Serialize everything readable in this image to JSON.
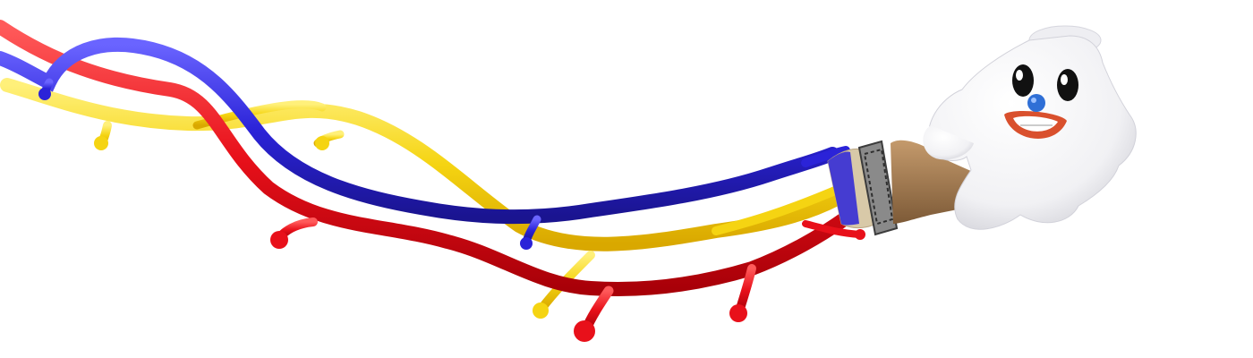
{
  "scene": {
    "background": "#ffffff",
    "colors": {
      "red": "#e8101a",
      "blue": "#2b23d8",
      "yellow": "#f5d412",
      "brush_wood": "#a37c55",
      "ferrule": "#8a8a8a",
      "glove": "#f4f4f6",
      "nose": "#2f6fd6",
      "mouth": "#d9502d"
    },
    "elements": [
      "red-paint-stream",
      "blue-paint-stream",
      "yellow-paint-stream",
      "paintbrush-icon",
      "glove-mascot-icon"
    ]
  }
}
